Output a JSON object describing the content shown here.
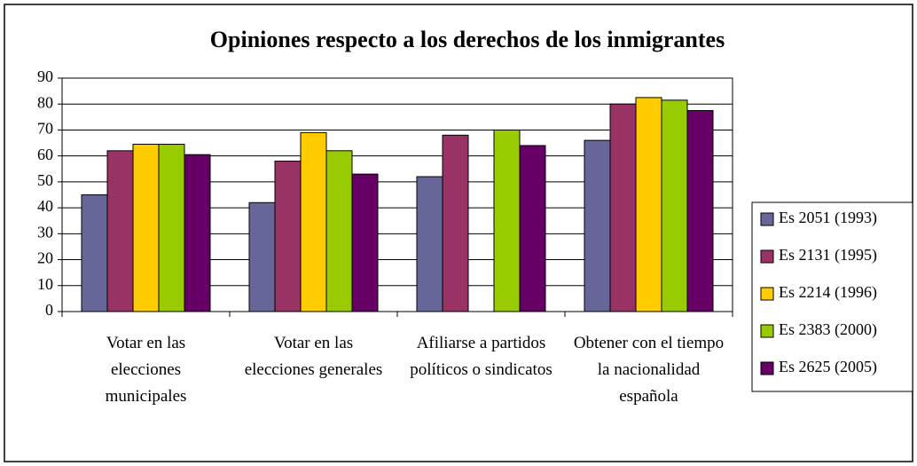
{
  "chart_data": {
    "type": "bar",
    "title": "Opiniones respecto a los derechos de los inmigrantes",
    "categories": [
      "Votar en las elecciones municipales",
      "Votar en las elecciones generales",
      "Afiliarse a partidos políticos o sindicatos",
      "Obtener con el tiempo la nacionalidad española"
    ],
    "series": [
      {
        "name": "Es 2051 (1993)",
        "color": "#666699",
        "values": [
          45,
          42,
          52,
          66
        ]
      },
      {
        "name": "Es 2131 (1995)",
        "color": "#993366",
        "values": [
          62,
          58,
          68,
          80
        ]
      },
      {
        "name": "Es 2214 (1996)",
        "color": "#ffcc00",
        "values": [
          64.5,
          69,
          null,
          82.5
        ]
      },
      {
        "name": "Es 2383 (2000)",
        "color": "#99cc00",
        "values": [
          64.5,
          62,
          70,
          81.5
        ]
      },
      {
        "name": "Es 2625 (2005)",
        "color": "#660066",
        "values": [
          60.5,
          53,
          64,
          77.5
        ]
      }
    ],
    "ylim": [
      0,
      90
    ],
    "yticks": [
      0,
      10,
      20,
      30,
      40,
      50,
      60,
      70,
      80,
      90
    ],
    "grid": true,
    "legend": "right"
  }
}
